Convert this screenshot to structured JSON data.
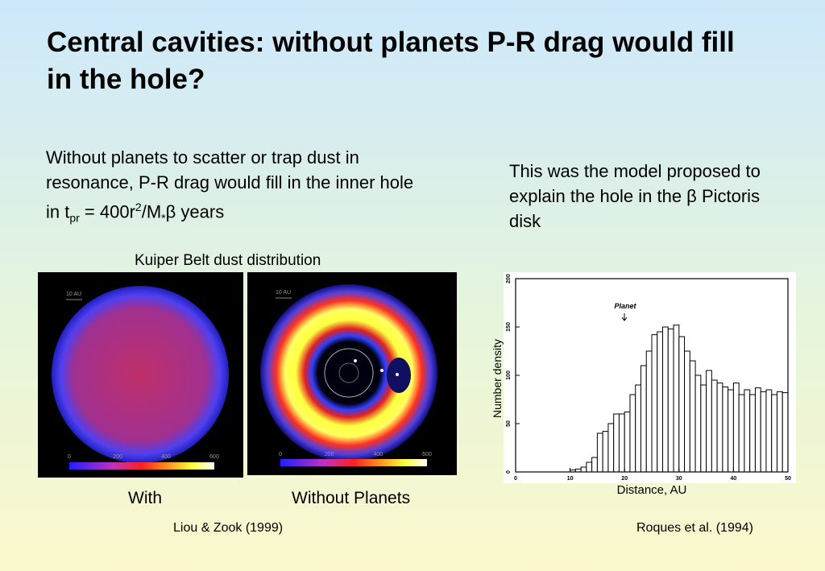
{
  "title": "Central cavities: without planets P-R drag would fill in the hole?",
  "body_left": [
    "Without planets to scatter or trap dust in resonance, P-R drag would fill in the inner hole in t",
    "pr",
    " = 400r",
    "2",
    "/M",
    "*",
    "β",
    " years"
  ],
  "body_right": [
    "This was the model proposed to explain the hole in the ",
    "β",
    " Pictoris disk"
  ],
  "images_caption": "Kuiper Belt dust distribution",
  "images": [
    {
      "label": "With",
      "scale": "10 AU",
      "colorbar_ticks": [
        "0",
        "200",
        "400",
        "600"
      ]
    },
    {
      "label": "Without Planets",
      "scale": "10 AU",
      "colorbar_ticks": [
        "0",
        "200",
        "400",
        "600"
      ]
    }
  ],
  "images_source": "Liou & Zook (1999)",
  "chart_source": "Roques et al. (1994)",
  "chart_data": {
    "type": "histogram",
    "x_label": "Distance, AU",
    "y_label": "Number density",
    "annotation": "Planet",
    "bins": [
      10,
      11,
      12,
      13,
      14,
      15,
      16,
      17,
      18,
      19,
      20,
      21,
      22,
      23,
      24,
      25,
      26,
      27,
      28,
      29,
      30,
      31,
      32,
      33,
      34,
      35,
      36,
      37,
      38,
      39,
      40,
      41,
      42,
      43,
      44,
      45,
      46,
      47,
      48,
      49,
      50
    ],
    "values": [
      2,
      3,
      5,
      10,
      15,
      40,
      42,
      50,
      60,
      60,
      62,
      80,
      90,
      110,
      125,
      142,
      145,
      150,
      148,
      152,
      140,
      125,
      115,
      100,
      90,
      105,
      95,
      92,
      88,
      85,
      92,
      80,
      85,
      80,
      87,
      83,
      85,
      80,
      83,
      82
    ],
    "color": "#ffffff",
    "xlim": [
      0,
      50
    ],
    "ylim": [
      0,
      200
    ],
    "xticks": [
      0,
      10,
      20,
      30,
      40,
      50
    ],
    "yticks": [
      0,
      50,
      100,
      150,
      200
    ]
  }
}
